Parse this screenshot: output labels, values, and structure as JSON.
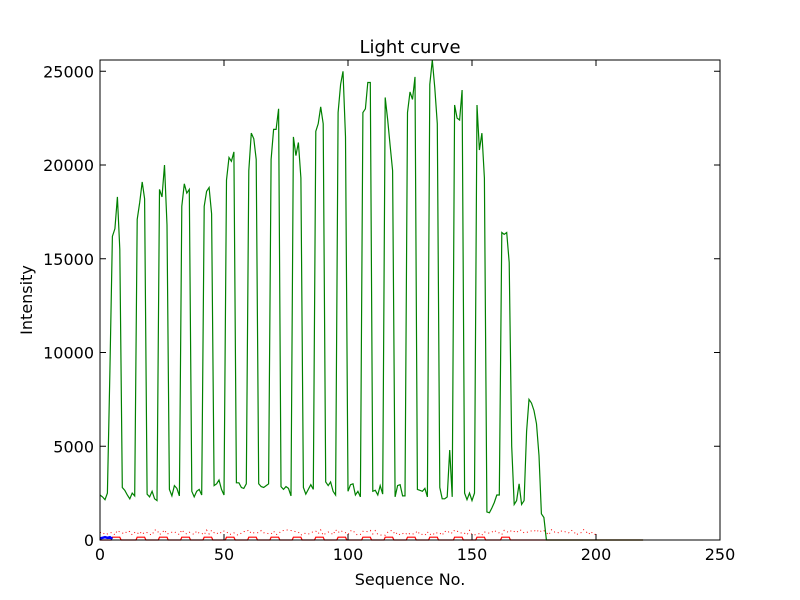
{
  "chart_data": {
    "type": "line",
    "title": "Light curve",
    "xlabel": "Sequence No.",
    "ylabel": "Intensity",
    "xlim": [
      0,
      250
    ],
    "ylim": [
      0,
      25600
    ],
    "xticks": [
      0,
      50,
      100,
      150,
      200,
      250
    ],
    "yticks": [
      0,
      5000,
      10000,
      15000,
      20000,
      25000
    ],
    "grid": false,
    "legend": "none",
    "series": [
      {
        "color": "#008000",
        "style": "solid",
        "points": [
          [
            0,
            2400
          ],
          [
            1,
            2300
          ],
          [
            2,
            2150
          ],
          [
            3,
            2500
          ],
          [
            4,
            9000
          ],
          [
            5,
            16200
          ],
          [
            6,
            16600
          ],
          [
            7,
            18300
          ],
          [
            8,
            15500
          ],
          [
            9,
            2800
          ],
          [
            10,
            2650
          ],
          [
            11,
            2400
          ],
          [
            12,
            2200
          ],
          [
            13,
            2500
          ],
          [
            14,
            2350
          ],
          [
            15,
            17100
          ],
          [
            16,
            18000
          ],
          [
            17,
            19100
          ],
          [
            18,
            18200
          ],
          [
            19,
            2450
          ],
          [
            20,
            2300
          ],
          [
            21,
            2600
          ],
          [
            22,
            2200
          ],
          [
            23,
            2100
          ],
          [
            24,
            18700
          ],
          [
            25,
            18300
          ],
          [
            26,
            20000
          ],
          [
            27,
            16800
          ],
          [
            28,
            2700
          ],
          [
            29,
            2350
          ],
          [
            30,
            2900
          ],
          [
            31,
            2750
          ],
          [
            32,
            2350
          ],
          [
            33,
            17800
          ],
          [
            34,
            19000
          ],
          [
            35,
            18500
          ],
          [
            36,
            18700
          ],
          [
            37,
            2600
          ],
          [
            38,
            2300
          ],
          [
            39,
            2600
          ],
          [
            40,
            2700
          ],
          [
            41,
            2400
          ],
          [
            42,
            17800
          ],
          [
            43,
            18600
          ],
          [
            44,
            18800
          ],
          [
            45,
            17400
          ],
          [
            46,
            2900
          ],
          [
            47,
            3000
          ],
          [
            48,
            3200
          ],
          [
            49,
            2700
          ],
          [
            50,
            2400
          ],
          [
            51,
            19200
          ],
          [
            52,
            20400
          ],
          [
            53,
            20200
          ],
          [
            54,
            20700
          ],
          [
            55,
            3050
          ],
          [
            56,
            3050
          ],
          [
            57,
            2800
          ],
          [
            58,
            2750
          ],
          [
            59,
            3000
          ],
          [
            60,
            19700
          ],
          [
            61,
            21700
          ],
          [
            62,
            21400
          ],
          [
            63,
            20300
          ],
          [
            64,
            3000
          ],
          [
            65,
            2850
          ],
          [
            66,
            2800
          ],
          [
            67,
            2900
          ],
          [
            68,
            3000
          ],
          [
            69,
            20300
          ],
          [
            70,
            21900
          ],
          [
            71,
            21900
          ],
          [
            72,
            23000
          ],
          [
            73,
            2850
          ],
          [
            74,
            2700
          ],
          [
            75,
            2850
          ],
          [
            76,
            2750
          ],
          [
            77,
            2350
          ],
          [
            78,
            21500
          ],
          [
            79,
            20500
          ],
          [
            80,
            21200
          ],
          [
            81,
            19300
          ],
          [
            82,
            2800
          ],
          [
            83,
            2450
          ],
          [
            84,
            2700
          ],
          [
            85,
            2950
          ],
          [
            86,
            2700
          ],
          [
            87,
            21800
          ],
          [
            88,
            22200
          ],
          [
            89,
            23100
          ],
          [
            90,
            22200
          ],
          [
            91,
            3100
          ],
          [
            92,
            2900
          ],
          [
            93,
            3100
          ],
          [
            94,
            2600
          ],
          [
            95,
            2400
          ],
          [
            96,
            22800
          ],
          [
            97,
            24300
          ],
          [
            98,
            25000
          ],
          [
            99,
            21500
          ],
          [
            100,
            2600
          ],
          [
            101,
            2950
          ],
          [
            102,
            3000
          ],
          [
            103,
            2400
          ],
          [
            104,
            2600
          ],
          [
            105,
            2300
          ],
          [
            106,
            22800
          ],
          [
            107,
            23000
          ],
          [
            108,
            24400
          ],
          [
            109,
            24400
          ],
          [
            110,
            2600
          ],
          [
            111,
            2650
          ],
          [
            112,
            2400
          ],
          [
            113,
            2900
          ],
          [
            114,
            2450
          ],
          [
            115,
            23600
          ],
          [
            116,
            22400
          ],
          [
            117,
            21000
          ],
          [
            118,
            19700
          ],
          [
            119,
            2300
          ],
          [
            120,
            2900
          ],
          [
            121,
            2950
          ],
          [
            122,
            2350
          ],
          [
            123,
            2350
          ],
          [
            124,
            22800
          ],
          [
            125,
            23900
          ],
          [
            126,
            23500
          ],
          [
            127,
            24700
          ],
          [
            128,
            2700
          ],
          [
            129,
            2650
          ],
          [
            130,
            2600
          ],
          [
            131,
            2750
          ],
          [
            132,
            2300
          ],
          [
            133,
            24300
          ],
          [
            134,
            25600
          ],
          [
            135,
            24100
          ],
          [
            136,
            22200
          ],
          [
            137,
            2800
          ],
          [
            138,
            2200
          ],
          [
            139,
            2200
          ],
          [
            140,
            2300
          ],
          [
            141,
            4800
          ],
          [
            142,
            2300
          ],
          [
            143,
            23200
          ],
          [
            144,
            22500
          ],
          [
            145,
            22400
          ],
          [
            146,
            24000
          ],
          [
            147,
            2500
          ],
          [
            148,
            2150
          ],
          [
            149,
            2500
          ],
          [
            150,
            2100
          ],
          [
            151,
            2500
          ],
          [
            152,
            23200
          ],
          [
            153,
            20800
          ],
          [
            154,
            21700
          ],
          [
            155,
            19300
          ],
          [
            156,
            1500
          ],
          [
            157,
            1450
          ],
          [
            158,
            1700
          ],
          [
            159,
            2000
          ],
          [
            160,
            2400
          ],
          [
            161,
            2400
          ],
          [
            162,
            16400
          ],
          [
            163,
            16300
          ],
          [
            164,
            16400
          ],
          [
            165,
            14800
          ],
          [
            166,
            5000
          ],
          [
            167,
            1900
          ],
          [
            168,
            2100
          ],
          [
            169,
            3000
          ],
          [
            170,
            1900
          ],
          [
            171,
            2100
          ],
          [
            172,
            5800
          ],
          [
            173,
            7500
          ],
          [
            174,
            7300
          ],
          [
            175,
            6900
          ],
          [
            176,
            6200
          ],
          [
            177,
            4500
          ],
          [
            178,
            1400
          ],
          [
            179,
            1200
          ],
          [
            180,
            0
          ],
          [
            200,
            0
          ],
          [
            219,
            0
          ]
        ]
      },
      {
        "color": "#ff0000",
        "style": "solid",
        "points": "pulse-train: 0 between dips ~150 in each bright segment, 0–200; flat 0 to 220"
      },
      {
        "color": "#ff0000",
        "style": "dotted",
        "points": "noisy baseline ~250–550 from 0 to 200"
      },
      {
        "color": "#0000ff",
        "style": "solid",
        "points": [
          [
            0,
            80
          ],
          [
            1,
            120
          ],
          [
            2,
            150
          ],
          [
            3,
            120
          ],
          [
            4,
            150
          ],
          [
            5,
            60
          ]
        ]
      }
    ]
  }
}
